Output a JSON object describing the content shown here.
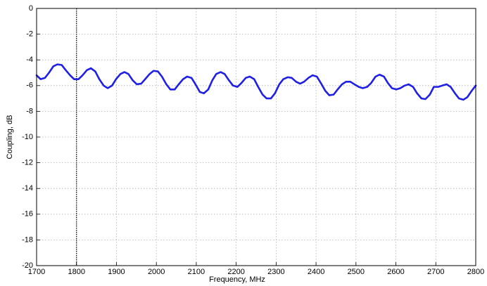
{
  "chart_data": {
    "type": "line",
    "x_label": "Frequency, MHz",
    "y_label": "Coupling, dB",
    "xlim": [
      1700,
      2800
    ],
    "xticks": [
      1700,
      1800,
      1900,
      2000,
      2100,
      2200,
      2300,
      2400,
      2500,
      2600,
      2700,
      2800
    ],
    "ylim": [
      -20,
      0
    ],
    "yticks": [
      0,
      -2,
      -4,
      -6,
      -8,
      -10,
      -12,
      -14,
      -16,
      -18,
      -20
    ],
    "grid": true,
    "vline_x": 1800,
    "vline_color": "#000000",
    "x": [
      1700,
      1710,
      1721,
      1731,
      1742,
      1752,
      1763,
      1773,
      1784,
      1794,
      1805,
      1815,
      1826,
      1836,
      1847,
      1857,
      1868,
      1878,
      1889,
      1899,
      1910,
      1920,
      1930,
      1941,
      1951,
      1962,
      1972,
      1983,
      1993,
      2004,
      2014,
      2025,
      2035,
      2046,
      2056,
      2067,
      2077,
      2088,
      2098,
      2109,
      2119,
      2130,
      2140,
      2150,
      2161,
      2171,
      2182,
      2192,
      2203,
      2213,
      2224,
      2234,
      2245,
      2255,
      2266,
      2276,
      2287,
      2297,
      2308,
      2318,
      2329,
      2339,
      2350,
      2360,
      2370,
      2381,
      2391,
      2402,
      2412,
      2423,
      2433,
      2444,
      2454,
      2465,
      2475,
      2486,
      2496,
      2507,
      2517,
      2528,
      2538,
      2549,
      2559,
      2570,
      2580,
      2590,
      2601,
      2611,
      2622,
      2632,
      2643,
      2653,
      2664,
      2674,
      2685,
      2695,
      2706,
      2716,
      2727,
      2737,
      2748,
      2758,
      2769,
      2779,
      2790,
      2800
    ],
    "series": [
      {
        "color": "#1f1fe6",
        "values": [
          -5.2,
          -5.5,
          -5.4,
          -5.0,
          -4.5,
          -4.35,
          -4.4,
          -4.8,
          -5.2,
          -5.5,
          -5.5,
          -5.2,
          -4.8,
          -4.65,
          -4.9,
          -5.5,
          -6.0,
          -6.2,
          -6.0,
          -5.5,
          -5.1,
          -4.95,
          -5.1,
          -5.6,
          -5.9,
          -5.85,
          -5.5,
          -5.1,
          -4.85,
          -4.9,
          -5.3,
          -5.9,
          -6.3,
          -6.3,
          -5.9,
          -5.5,
          -5.3,
          -5.4,
          -5.9,
          -6.5,
          -6.6,
          -6.3,
          -5.6,
          -5.1,
          -4.95,
          -5.1,
          -5.6,
          -6.0,
          -6.1,
          -5.8,
          -5.4,
          -5.3,
          -5.5,
          -6.1,
          -6.7,
          -7.0,
          -7.0,
          -6.6,
          -5.9,
          -5.5,
          -5.35,
          -5.4,
          -5.7,
          -5.85,
          -5.7,
          -5.4,
          -5.2,
          -5.3,
          -5.8,
          -6.4,
          -6.75,
          -6.7,
          -6.3,
          -5.9,
          -5.7,
          -5.7,
          -5.9,
          -6.1,
          -6.2,
          -6.1,
          -5.8,
          -5.3,
          -5.15,
          -5.3,
          -5.8,
          -6.2,
          -6.3,
          -6.2,
          -6.0,
          -5.9,
          -6.1,
          -6.6,
          -7.0,
          -7.05,
          -6.7,
          -6.1,
          -6.1,
          -6.0,
          -5.9,
          -6.1,
          -6.6,
          -7.0,
          -7.1,
          -6.9,
          -6.4,
          -6.0
        ]
      }
    ]
  }
}
